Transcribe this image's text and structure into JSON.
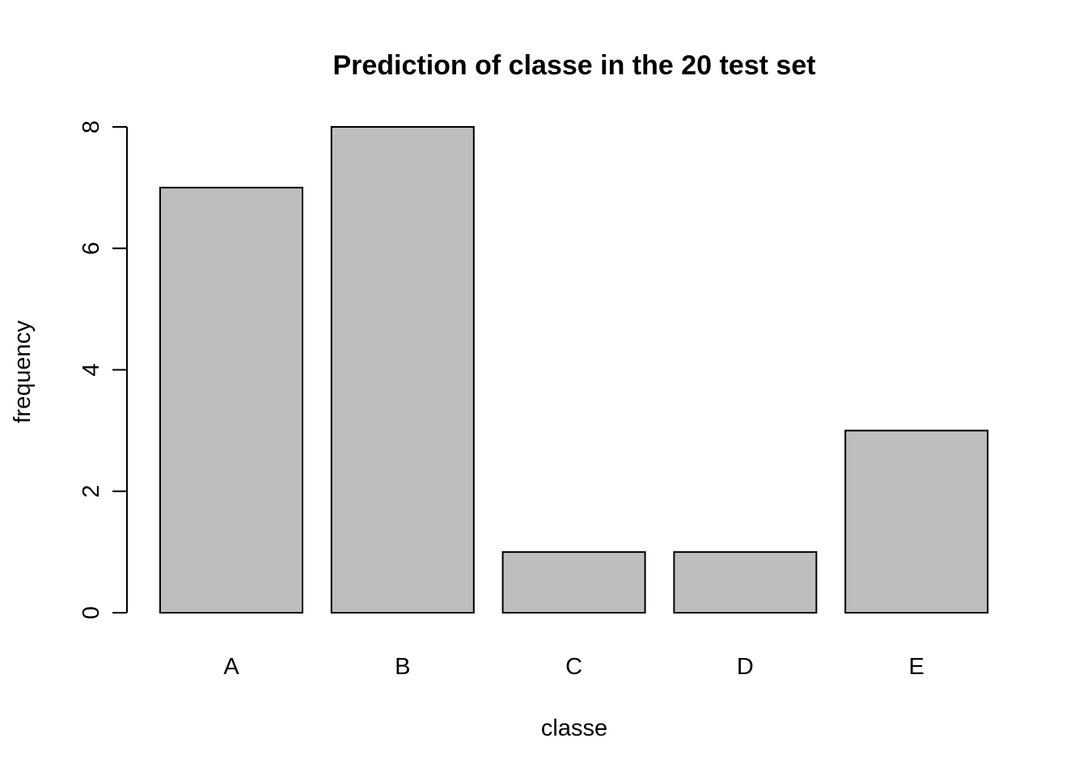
{
  "chart_data": {
    "type": "bar",
    "title": "Prediction of classe in the 20 test set",
    "xlabel": "classe",
    "ylabel": "frequency",
    "categories": [
      "A",
      "B",
      "C",
      "D",
      "E"
    ],
    "values": [
      7,
      8,
      1,
      1,
      3
    ],
    "yticks": [
      0,
      2,
      4,
      6,
      8
    ],
    "ylim": [
      0,
      8
    ],
    "bar_color": "#bebebe",
    "grid": false
  }
}
